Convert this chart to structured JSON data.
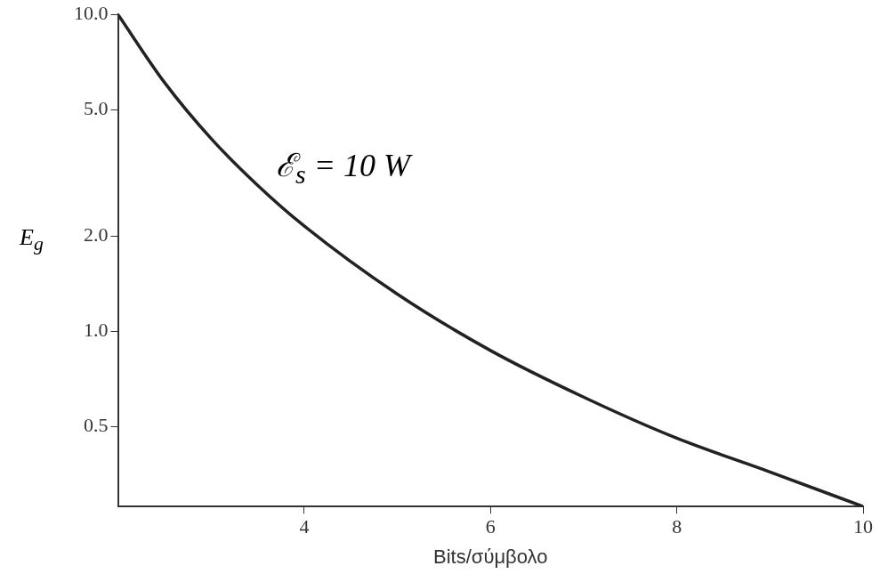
{
  "chart_data": {
    "type": "line",
    "xlabel": "Bits/σύμβολο",
    "ylabel": "E$_{g}$",
    "annotations": [
      "ℰ$_{s}$ = 10 W"
    ],
    "x": [
      2,
      2.5,
      3,
      3.5,
      4,
      5,
      6,
      7,
      8,
      9,
      10
    ],
    "series": [
      {
        "color": "#222222",
        "values": [
          10,
          6.1,
          4.06,
          2.89,
          2.15,
          1.31,
          0.87,
          0.62,
          0.46,
          0.36,
          0.28
        ]
      }
    ],
    "xlim": [
      2,
      10
    ],
    "xticks": [
      4,
      6,
      8,
      10
    ],
    "ylim": [
      0.28,
      10
    ],
    "yticks": [
      {
        "value": 0.5,
        "label": "0.5"
      },
      {
        "value": 1,
        "label": "1.0"
      },
      {
        "value": 2,
        "label": "2.0"
      },
      {
        "value": 5,
        "label": "5.0"
      },
      {
        "value": 10,
        "label": "10.0"
      }
    ],
    "log": "y",
    "grid": false,
    "legend": false,
    "marker": "none",
    "line_style": "solid"
  }
}
